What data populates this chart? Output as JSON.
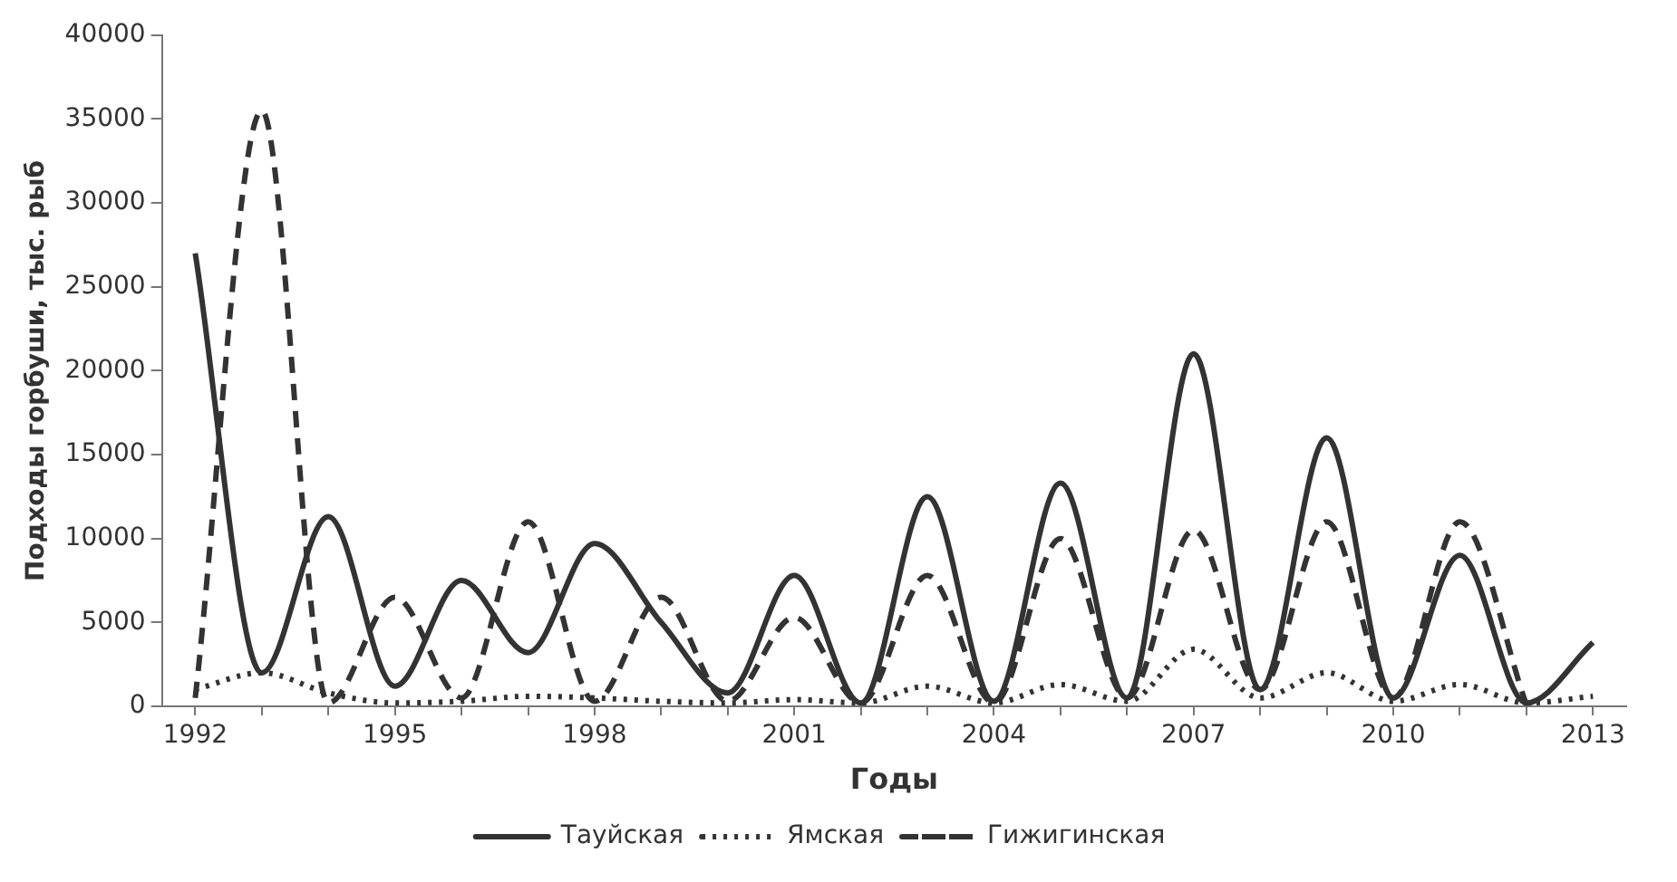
{
  "chart_data": {
    "type": "line",
    "xlabel": "Годы",
    "ylabel": "Подходы горбуши, тыс. рыб",
    "categories": [
      "1992",
      null,
      null,
      "1995",
      null,
      null,
      "1998",
      null,
      null,
      "2001",
      null,
      null,
      "2004",
      null,
      null,
      "2007",
      null,
      null,
      "2010",
      null,
      null,
      "2013"
    ],
    "series": [
      {
        "name": "Тауйская",
        "color": "#333333",
        "line_style": "solid",
        "values": [
          27000,
          2000,
          11300,
          1200,
          7500,
          3200,
          9700,
          5000,
          800,
          7800,
          200,
          12500,
          300,
          13300,
          500,
          21000,
          1000,
          16000,
          500,
          9000,
          200,
          3800
        ]
      },
      {
        "name": "Ямская",
        "color": "#333333",
        "line_style": "dotted",
        "values": [
          1000,
          2000,
          800,
          200,
          300,
          600,
          500,
          300,
          200,
          400,
          200,
          1200,
          200,
          1300,
          300,
          3400,
          500,
          2000,
          300,
          1300,
          200,
          600
        ]
      },
      {
        "name": "Гижигинская",
        "color": "#333333",
        "line_style": "dashed",
        "values": [
          500,
          35500,
          200,
          6500,
          500,
          11000,
          300,
          6500,
          300,
          5300,
          200,
          7800,
          200,
          10000,
          500,
          10500,
          1000,
          11000,
          500,
          11000,
          100,
          null
        ]
      }
    ],
    "ylim": [
      0,
      40000
    ],
    "yticks": [
      0,
      5000,
      10000,
      15000,
      20000,
      25000,
      30000,
      35000,
      40000
    ],
    "grid": false,
    "legend": "bottom",
    "marker": "none"
  }
}
